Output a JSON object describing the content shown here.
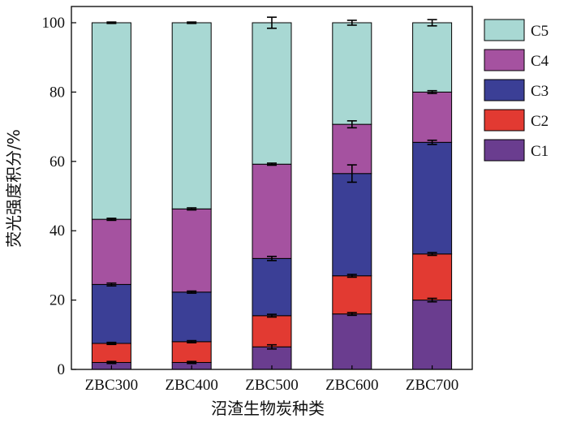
{
  "chart_data": {
    "type": "bar",
    "stacked": true,
    "categories": [
      "ZBC300",
      "ZBC400",
      "ZBC500",
      "ZBC600",
      "ZBC700"
    ],
    "xlabel": "沼渣生物炭种类",
    "ylabel": "荧光强度积分/%",
    "ylim": [
      0,
      105
    ],
    "yticks": [
      0,
      20,
      40,
      60,
      80,
      100
    ],
    "legend_position": "right",
    "series": [
      {
        "name": "C1",
        "color": "#6a3d8f",
        "values": [
          2.0,
          2.0,
          6.5,
          16.0,
          20.0
        ],
        "errors": [
          0.3,
          0.3,
          0.6,
          0.4,
          0.5
        ]
      },
      {
        "name": "C2",
        "color": "#e23a32",
        "values": [
          5.5,
          6.0,
          9.0,
          11.0,
          13.3
        ],
        "errors": [
          0.3,
          0.3,
          0.4,
          0.4,
          0.4
        ]
      },
      {
        "name": "C3",
        "color": "#3b3f96",
        "values": [
          17.0,
          14.3,
          16.5,
          29.5,
          32.2
        ],
        "errors": [
          0.4,
          0.3,
          0.6,
          2.5,
          0.6
        ]
      },
      {
        "name": "C4",
        "color": "#a552a0",
        "values": [
          18.8,
          24.0,
          27.2,
          14.2,
          14.5
        ],
        "errors": [
          0.3,
          0.3,
          0.3,
          1.0,
          0.4
        ]
      },
      {
        "name": "C5",
        "color": "#a8d8d3",
        "values": [
          56.7,
          53.7,
          40.8,
          29.3,
          20.0
        ],
        "errors": [
          0.2,
          0.2,
          1.6,
          0.7,
          0.9
        ]
      }
    ]
  }
}
